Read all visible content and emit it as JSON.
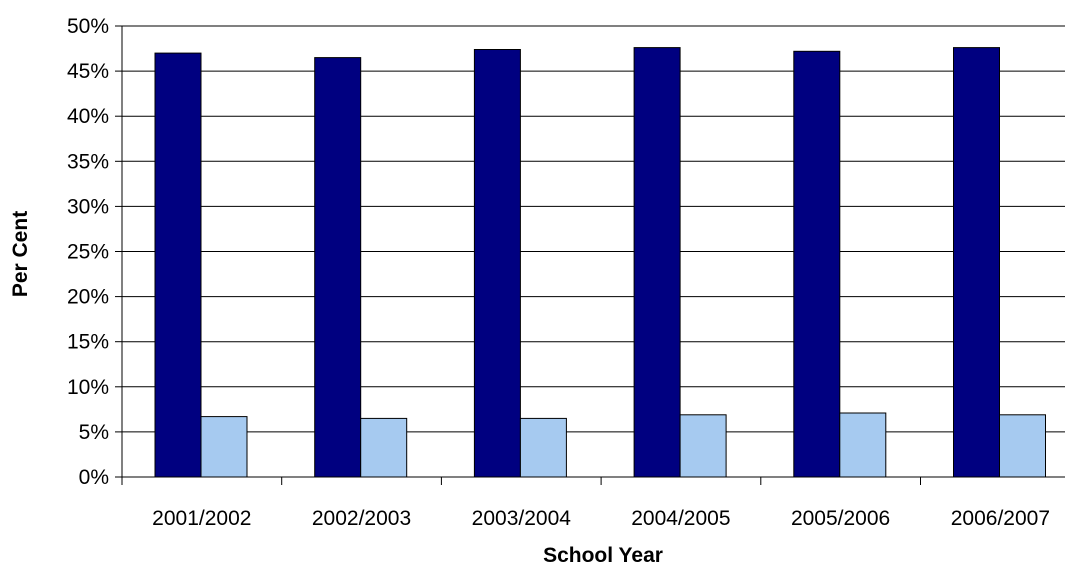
{
  "chart_data": {
    "type": "bar",
    "title": "",
    "xlabel": "School Year",
    "ylabel": "Per Cent",
    "categories": [
      "2001/2002",
      "2002/2003",
      "2003/2004",
      "2004/2005",
      "2005/2006",
      "2006/2007"
    ],
    "series": [
      {
        "values": [
          0.47,
          0.465,
          0.474,
          0.476,
          0.472,
          0.476
        ],
        "color": "#000080"
      },
      {
        "values": [
          0.067,
          0.065,
          0.065,
          0.069,
          0.071,
          0.069
        ],
        "color": "#A6CAF0"
      }
    ],
    "ylim": [
      0,
      0.5
    ],
    "yticks": [
      0,
      0.05,
      0.1,
      0.15,
      0.2,
      0.25,
      0.3,
      0.35,
      0.4,
      0.45,
      0.5
    ],
    "ytick_labels": [
      "0%",
      "5%",
      "10%",
      "15%",
      "20%",
      "25%",
      "30%",
      "35%",
      "40%",
      "45%",
      "50%"
    ],
    "grid": true,
    "legend": "none"
  }
}
